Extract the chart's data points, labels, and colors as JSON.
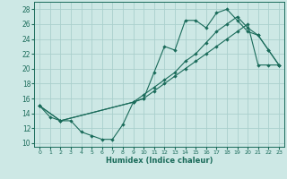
{
  "xlabel": "Humidex (Indice chaleur)",
  "xlim": [
    -0.5,
    23.5
  ],
  "ylim": [
    9.5,
    29.0
  ],
  "bg_color": "#cde8e5",
  "grid_color": "#aacfcc",
  "line_color": "#1a6b5a",
  "xticks": [
    0,
    1,
    2,
    3,
    4,
    5,
    6,
    7,
    8,
    9,
    10,
    11,
    12,
    13,
    14,
    15,
    16,
    17,
    18,
    19,
    20,
    21,
    22,
    23
  ],
  "yticks": [
    10,
    12,
    14,
    16,
    18,
    20,
    22,
    24,
    26,
    28
  ],
  "curve1_x": [
    0,
    1,
    2,
    3,
    4,
    5,
    6,
    7,
    8,
    9,
    10,
    11,
    12,
    13,
    14,
    15,
    16,
    17,
    18,
    19,
    20,
    21,
    22,
    23
  ],
  "curve1_y": [
    15,
    13.5,
    13,
    13,
    11.5,
    11,
    10.5,
    10.5,
    12.5,
    15.5,
    16,
    19.5,
    23,
    22.5,
    26.5,
    26.5,
    25.5,
    27.5,
    28,
    26.5,
    25,
    24.5,
    22.5,
    20.5
  ],
  "curve2_x": [
    0,
    2,
    9,
    10,
    11,
    12,
    13,
    14,
    15,
    16,
    17,
    18,
    19,
    20,
    21,
    22,
    23
  ],
  "curve2_y": [
    15,
    13,
    15.5,
    16,
    17,
    18,
    19,
    20,
    21,
    22,
    23,
    24,
    25,
    26,
    20.5,
    20.5,
    20.5
  ],
  "curve3_x": [
    0,
    2,
    9,
    10,
    11,
    12,
    13,
    14,
    15,
    16,
    17,
    18,
    19,
    20,
    21,
    22,
    23
  ],
  "curve3_y": [
    15,
    13,
    15.5,
    16.5,
    17.5,
    18.5,
    19.5,
    21,
    22,
    23.5,
    25,
    26,
    27,
    25.5,
    24.5,
    22.5,
    20.5
  ]
}
